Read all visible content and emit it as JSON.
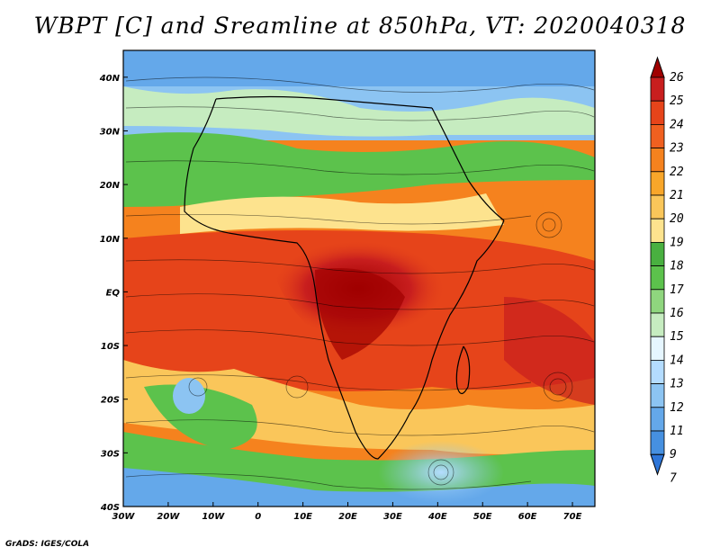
{
  "title": "WBPT [C] and Sreamline at 850hPa, VT: 2020040318",
  "credit": "GrADS: IGES/COLA",
  "map": {
    "lon_range": [
      -30,
      75
    ],
    "lat_range": [
      -40,
      45
    ],
    "x_ticks": [
      {
        "value": -30,
        "label": "30W"
      },
      {
        "value": -20,
        "label": "20W"
      },
      {
        "value": -10,
        "label": "10W"
      },
      {
        "value": 0,
        "label": "0"
      },
      {
        "value": 10,
        "label": "10E"
      },
      {
        "value": 20,
        "label": "20E"
      },
      {
        "value": 30,
        "label": "30E"
      },
      {
        "value": 40,
        "label": "40E"
      },
      {
        "value": 50,
        "label": "50E"
      },
      {
        "value": 60,
        "label": "60E"
      },
      {
        "value": 70,
        "label": "70E"
      }
    ],
    "y_ticks": [
      {
        "value": 40,
        "label": "40N"
      },
      {
        "value": 30,
        "label": "30N"
      },
      {
        "value": 20,
        "label": "20N"
      },
      {
        "value": 10,
        "label": "10N"
      },
      {
        "value": 0,
        "label": "EQ"
      },
      {
        "value": -10,
        "label": "10S"
      },
      {
        "value": -20,
        "label": "20S"
      },
      {
        "value": -30,
        "label": "30S"
      },
      {
        "value": -40,
        "label": "40S"
      }
    ]
  },
  "colorbar": {
    "levels": [
      "26",
      "25",
      "24",
      "23",
      "22",
      "21",
      "20",
      "19",
      "18",
      "17",
      "16",
      "15",
      "14",
      "13",
      "12",
      "11",
      "9",
      "7"
    ],
    "colors": [
      "#a00000",
      "#c81e1e",
      "#e6441a",
      "#f06020",
      "#f5821e",
      "#f8a62a",
      "#fac65a",
      "#fde38e",
      "#49b040",
      "#5cc24c",
      "#8fd67e",
      "#c6ecc0",
      "#e6f6ff",
      "#b4dcff",
      "#8cc4f2",
      "#64a8ea",
      "#4690e0",
      "#2e76d8"
    ]
  },
  "legend_title": "WBPT [C]"
}
